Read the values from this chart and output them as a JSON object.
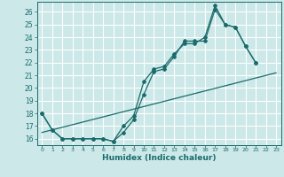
{
  "xlabel": "Humidex (Indice chaleur)",
  "bg_color": "#cce8e8",
  "grid_color": "#ffffff",
  "line_color": "#1a6b6b",
  "xlim": [
    -0.5,
    23.5
  ],
  "ylim": [
    15.5,
    26.8
  ],
  "xticks": [
    0,
    1,
    2,
    3,
    4,
    5,
    6,
    7,
    8,
    9,
    10,
    11,
    12,
    13,
    14,
    15,
    16,
    17,
    18,
    19,
    20,
    21,
    22,
    23
  ],
  "yticks": [
    16,
    17,
    18,
    19,
    20,
    21,
    22,
    23,
    24,
    25,
    26
  ],
  "line1_x": [
    0,
    1,
    2,
    3,
    4,
    5,
    6,
    7,
    8,
    9,
    10,
    11,
    12,
    13,
    14,
    15,
    16,
    17,
    18,
    19,
    20,
    21
  ],
  "line1_y": [
    18.0,
    16.7,
    16.0,
    16.0,
    16.0,
    16.0,
    16.0,
    15.8,
    16.5,
    17.5,
    19.5,
    21.3,
    21.5,
    22.5,
    23.7,
    23.7,
    23.7,
    26.2,
    25.0,
    24.8,
    23.3,
    22.0
  ],
  "line2_x": [
    0,
    1,
    2,
    3,
    4,
    5,
    6,
    7,
    8,
    9,
    10,
    11,
    12,
    13,
    14,
    15,
    16,
    17,
    18,
    19,
    20,
    21
  ],
  "line2_y": [
    18.0,
    16.7,
    16.0,
    16.0,
    16.0,
    16.0,
    16.0,
    15.8,
    17.0,
    17.8,
    20.5,
    21.5,
    21.7,
    22.7,
    23.5,
    23.5,
    24.0,
    26.5,
    25.0,
    24.8,
    23.3,
    22.0
  ],
  "line3_x": [
    0,
    23
  ],
  "line3_y": [
    16.5,
    21.2
  ]
}
